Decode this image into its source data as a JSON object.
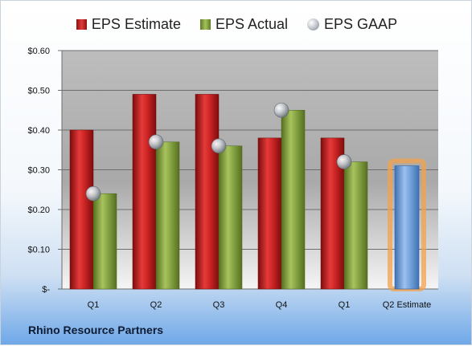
{
  "legend": {
    "estimate_label": "EPS Estimate",
    "actual_label": "EPS Actual",
    "gaap_label": "EPS GAAP"
  },
  "company": "Rhino Resource Partners",
  "colors": {
    "estimate": "#c62121",
    "actual": "#7f9d3d",
    "gaap": "#b9bec5",
    "future_estimate": "#6a9bd6",
    "highlight_glow": "#f3a24a",
    "plot_background_top": "#bdbdbd",
    "plot_background_bottom": "#f7f7f7"
  },
  "chart_data": {
    "type": "bar",
    "categories": [
      "Q1",
      "Q2",
      "Q3",
      "Q4",
      "Q1",
      "Q2 Estimate"
    ],
    "series": [
      {
        "name": "EPS Estimate",
        "values": [
          0.4,
          0.49,
          0.49,
          0.38,
          0.38,
          null
        ]
      },
      {
        "name": "EPS Actual",
        "values": [
          0.24,
          0.37,
          0.36,
          0.45,
          0.32,
          null
        ]
      },
      {
        "name": "EPS GAAP",
        "values": [
          0.24,
          0.37,
          0.36,
          0.45,
          0.32,
          null
        ]
      }
    ],
    "next_estimate": {
      "category": "Q2 Estimate",
      "value": 0.31
    },
    "yticks": [
      "$-",
      "$0.10",
      "$0.20",
      "$0.30",
      "$0.40",
      "$0.50",
      "$0.60"
    ],
    "ylim": [
      0,
      0.6
    ],
    "grid": true,
    "legend_position": "top"
  }
}
